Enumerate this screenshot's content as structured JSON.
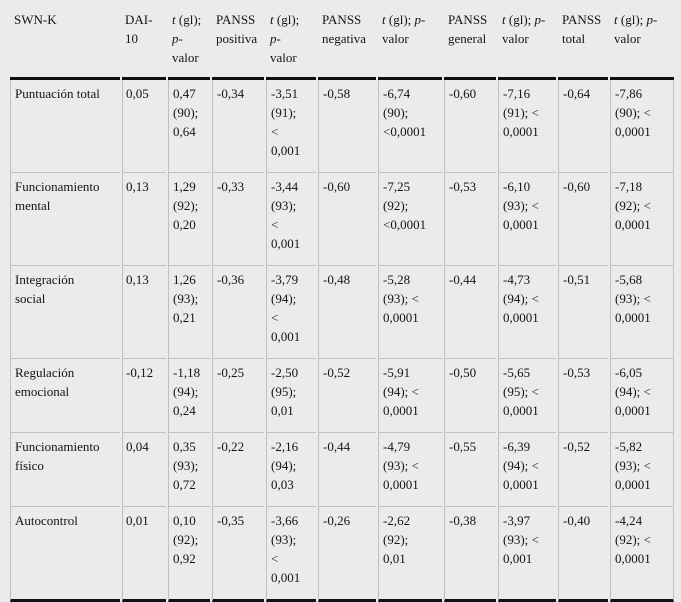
{
  "page": {
    "background": "#ebebeb",
    "rule_color": "#101010",
    "grid_color": "#c0c0c0"
  },
  "table": {
    "columns": [
      "SWN-K",
      "DAI-10",
      "t (gl); p-valor",
      "PANSS positiva",
      "t (gl); p-valor",
      "PANSS negativa",
      "t (gl); p-valor",
      "PANSS general",
      "t (gl); p-valor",
      "PANSS total",
      "t (gl); p-valor"
    ],
    "rows": [
      {
        "label": "Puntuación total",
        "cells": [
          "0,05",
          "0,47 (90); 0,64",
          "-0,34",
          "-3,51 (91); < 0,001",
          "-0,58",
          "-6,74 (90); <0,0001",
          "-0,60",
          "-7,16 (91); < 0,0001",
          "-0,64",
          "-7,86 (90); < 0,0001"
        ]
      },
      {
        "label": "Funcionamiento mental",
        "cells": [
          "0,13",
          "1,29 (92); 0,20",
          "-0,33",
          "-3,44 (93); < 0,001",
          "-0,60",
          "-7,25 (92); <0,0001",
          "-0,53",
          "-6,10 (93); < 0,0001",
          "-0,60",
          "-7,18 (92); < 0,0001"
        ]
      },
      {
        "label": "Integración social",
        "cells": [
          "0,13",
          "1,26 (93); 0,21",
          "-0,36",
          "-3,79 (94); < 0,001",
          "-0,48",
          "-5,28 (93); < 0,0001",
          "-0,44",
          "-4,73 (94); < 0,0001",
          "-0,51",
          "-5,68 (93); < 0,0001"
        ]
      },
      {
        "label": "Regulación emocional",
        "cells": [
          "-0,12",
          "-1,18 (94); 0,24",
          "-0,25",
          "-2,50 (95); 0,01",
          "-0,52",
          "-5,91 (94); < 0,0001",
          "-0,50",
          "-5,65 (95); < 0,0001",
          "-0,53",
          "-6,05 (94); < 0,0001"
        ]
      },
      {
        "label": "Funcionamiento físico",
        "cells": [
          "0,04",
          "0,35 (93); 0,72",
          "-0,22",
          "-2,16 (94); 0,03",
          "-0,44",
          "-4,79 (93); < 0,0001",
          "-0,55",
          "-6,39 (94); < 0,0001",
          "-0,52",
          "-5,82 (93); < 0,0001"
        ]
      },
      {
        "label": "Autocontrol",
        "cells": [
          "0,01",
          "0,10 (92); 0,92",
          "-0,35",
          "-3,66 (93); < 0,001",
          "-0,26",
          "-2,62 (92); 0,01",
          "-0,38",
          "-3,97 (93); < 0,001",
          "-0,40",
          "-4,24 (92); < 0,0001"
        ]
      }
    ]
  }
}
